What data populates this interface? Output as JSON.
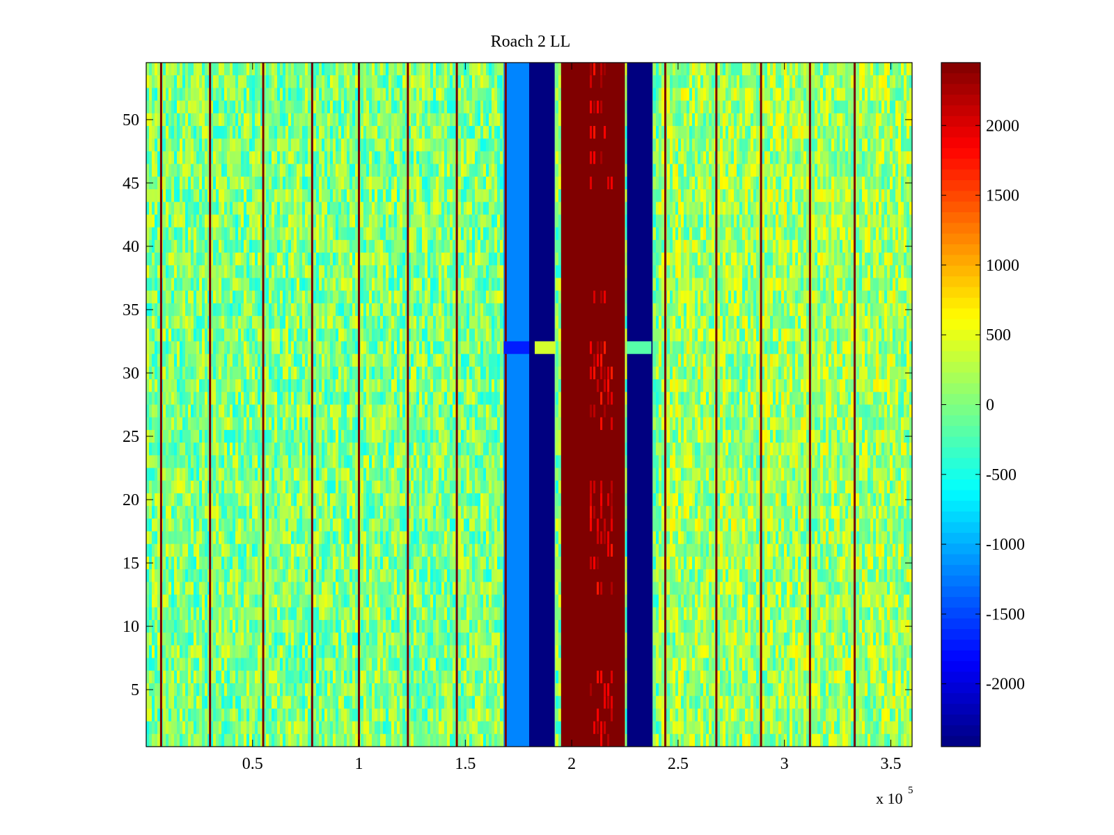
{
  "chart_data": {
    "type": "heatmap",
    "title": "Roach 2 LL",
    "xlabel": "",
    "ylabel": "",
    "x_exponent_label": "x 10",
    "x_exponent_power": "5",
    "xlim": [
      0,
      3.6
    ],
    "ylim": [
      0.5,
      54.5
    ],
    "xticks": [
      {
        "value": 0.5,
        "label": "0.5"
      },
      {
        "value": 1,
        "label": "1"
      },
      {
        "value": 1.5,
        "label": "1.5"
      },
      {
        "value": 2,
        "label": "2"
      },
      {
        "value": 2.5,
        "label": "2.5"
      },
      {
        "value": 3,
        "label": "3"
      },
      {
        "value": 3.5,
        "label": "3.5"
      }
    ],
    "yticks": [
      {
        "value": 5,
        "label": "5"
      },
      {
        "value": 10,
        "label": "10"
      },
      {
        "value": 15,
        "label": "15"
      },
      {
        "value": 20,
        "label": "20"
      },
      {
        "value": 25,
        "label": "25"
      },
      {
        "value": 30,
        "label": "30"
      },
      {
        "value": 35,
        "label": "35"
      },
      {
        "value": 40,
        "label": "40"
      },
      {
        "value": 45,
        "label": "45"
      },
      {
        "value": 50,
        "label": "50"
      }
    ],
    "colormap": "jet",
    "clim": [
      -2450,
      2450
    ],
    "colorbar_ticks": [
      {
        "value": 2000,
        "label": "2000"
      },
      {
        "value": 1500,
        "label": "1500"
      },
      {
        "value": 1000,
        "label": "1000"
      },
      {
        "value": 500,
        "label": "500"
      },
      {
        "value": 0,
        "label": "0"
      },
      {
        "value": -500,
        "label": "-500"
      },
      {
        "value": -1000,
        "label": "-1000"
      },
      {
        "value": -1500,
        "label": "-1500"
      },
      {
        "value": -2000,
        "label": "-2000"
      }
    ],
    "rows": 54,
    "background_value": 0,
    "bands": [
      {
        "x_start": 1.68,
        "x_end": 1.8,
        "value": -1200,
        "note": "light blue band"
      },
      {
        "x_start": 1.8,
        "x_end": 1.92,
        "value": -2450,
        "note": "dark blue band"
      },
      {
        "x_start": 1.95,
        "x_end": 2.25,
        "value": 2450,
        "note": "dark red band"
      },
      {
        "x_start": 2.26,
        "x_end": 2.38,
        "value": -2450,
        "note": "dark blue band"
      }
    ],
    "row_feature": {
      "row": 32,
      "value": 400,
      "note": "horizontal artifact at y=32"
    },
    "vertical_lines_x": [
      0.07,
      0.3,
      0.55,
      0.78,
      1.0,
      1.23,
      1.46,
      1.69,
      2.44,
      2.68,
      2.89,
      3.12,
      3.33
    ]
  }
}
